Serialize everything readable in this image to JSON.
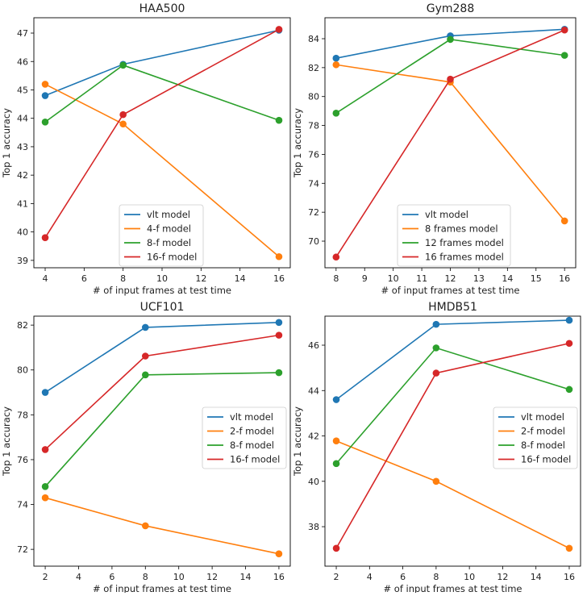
{
  "colors": {
    "vlt": "#1f77b4",
    "orange": "#ff7f0e",
    "green": "#2ca02c",
    "red": "#d62728"
  },
  "chart_data": [
    {
      "type": "line",
      "title": "HAA500",
      "xlabel": "# of input frames at test time",
      "ylabel": "Top 1 accuracy",
      "x": [
        4,
        8,
        16
      ],
      "xlim": [
        3.42,
        16.58
      ],
      "ylim": [
        38.74,
        47.54
      ],
      "xticks": [
        4,
        6,
        8,
        10,
        12,
        14,
        16
      ],
      "yticks": [
        39,
        40,
        41,
        42,
        43,
        44,
        45,
        46,
        47
      ],
      "legend_position": "lower-center",
      "series": [
        {
          "name": "vlt model",
          "color": "#1f77b4",
          "values": [
            44.8,
            45.9,
            47.1
          ]
        },
        {
          "name": "4-f model",
          "color": "#ff7f0e",
          "values": [
            45.2,
            43.8,
            39.13
          ]
        },
        {
          "name": "8-f model",
          "color": "#2ca02c",
          "values": [
            43.87,
            45.87,
            43.93
          ]
        },
        {
          "name": "16-f model",
          "color": "#d62728",
          "values": [
            39.8,
            44.13,
            47.13
          ]
        }
      ]
    },
    {
      "type": "line",
      "title": "Gym288",
      "xlabel": "# of input frames at test time",
      "ylabel": "Top 1 accuracy",
      "x": [
        8,
        12,
        16
      ],
      "xlim": [
        7.61,
        16.39
      ],
      "ylim": [
        68.16,
        85.45
      ],
      "xticks": [
        8,
        9,
        10,
        11,
        12,
        13,
        14,
        15,
        16
      ],
      "yticks": [
        70,
        72,
        74,
        76,
        78,
        80,
        82,
        84
      ],
      "legend_position": "lower-center",
      "series": [
        {
          "name": "vlt model",
          "color": "#1f77b4",
          "values": [
            82.65,
            84.2,
            84.65
          ]
        },
        {
          "name": "8 frames model",
          "color": "#ff7f0e",
          "values": [
            82.2,
            81.0,
            71.4
          ]
        },
        {
          "name": "12 frames model",
          "color": "#2ca02c",
          "values": [
            78.85,
            83.95,
            82.85
          ]
        },
        {
          "name": "16 frames model",
          "color": "#d62728",
          "values": [
            68.9,
            81.2,
            84.6
          ]
        }
      ]
    },
    {
      "type": "line",
      "title": "UCF101",
      "xlabel": "# of input frames at test time",
      "ylabel": "Top 1 accuracy",
      "x": [
        2,
        8,
        16
      ],
      "xlim": [
        1.32,
        16.68
      ],
      "ylim": [
        71.25,
        82.4
      ],
      "xticks": [
        2,
        4,
        6,
        8,
        10,
        12,
        14,
        16
      ],
      "yticks": [
        72,
        74,
        76,
        78,
        80,
        82
      ],
      "legend_position": "center-right",
      "series": [
        {
          "name": "vlt model",
          "color": "#1f77b4",
          "values": [
            79.0,
            81.9,
            82.12
          ]
        },
        {
          "name": "2-f model",
          "color": "#ff7f0e",
          "values": [
            74.3,
            73.05,
            71.8
          ]
        },
        {
          "name": "8-f model",
          "color": "#2ca02c",
          "values": [
            74.8,
            79.78,
            79.88
          ]
        },
        {
          "name": "16-f model",
          "color": "#d62728",
          "values": [
            76.45,
            80.62,
            81.55
          ]
        }
      ]
    },
    {
      "type": "line",
      "title": "HMDB51",
      "xlabel": "# of input frames at test time",
      "ylabel": "Top 1 accuracy",
      "x": [
        2,
        8,
        16
      ],
      "xlim": [
        1.32,
        16.68
      ],
      "ylim": [
        36.26,
        47.28
      ],
      "xticks": [
        2,
        4,
        6,
        8,
        10,
        12,
        14,
        16
      ],
      "yticks": [
        38,
        40,
        42,
        44,
        46
      ],
      "legend_position": "center-right",
      "series": [
        {
          "name": "vlt model",
          "color": "#1f77b4",
          "values": [
            43.6,
            46.92,
            47.1
          ]
        },
        {
          "name": "2-f model",
          "color": "#ff7f0e",
          "values": [
            41.78,
            40.0,
            37.05
          ]
        },
        {
          "name": "8-f model",
          "color": "#2ca02c",
          "values": [
            40.78,
            45.88,
            44.05
          ]
        },
        {
          "name": "16-f model",
          "color": "#d62728",
          "values": [
            37.05,
            44.77,
            46.08
          ]
        }
      ]
    }
  ]
}
